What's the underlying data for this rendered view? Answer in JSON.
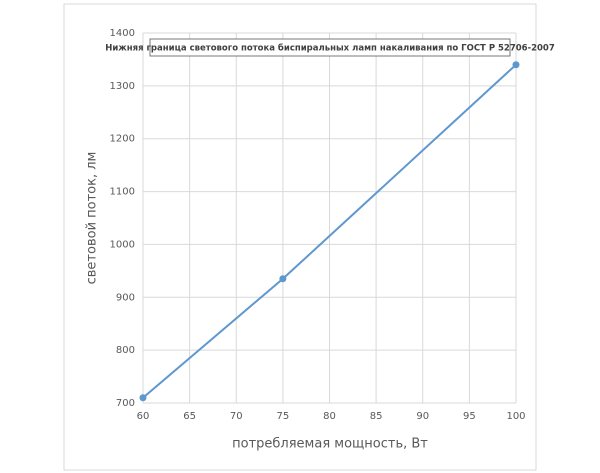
{
  "chart_data": {
    "type": "line",
    "title": "Нижняя граница светового потока биспиральных ламп накаливания по ГОСТ Р 52706-2007",
    "x_label": "потребляемая мощность, Вт",
    "y_label": "световой поток, лм",
    "x": [
      60,
      75,
      100
    ],
    "series": [
      {
        "name": "",
        "color": "#5f97cf",
        "values": [
          710,
          935,
          1340
        ]
      }
    ],
    "xlim": [
      60,
      100
    ],
    "xticks": [
      60,
      65,
      70,
      75,
      80,
      85,
      90,
      95,
      100
    ],
    "ylim": [
      700,
      1400
    ],
    "yticks": [
      700,
      800,
      900,
      1000,
      1100,
      1200,
      1300,
      1400
    ],
    "grid": true
  }
}
